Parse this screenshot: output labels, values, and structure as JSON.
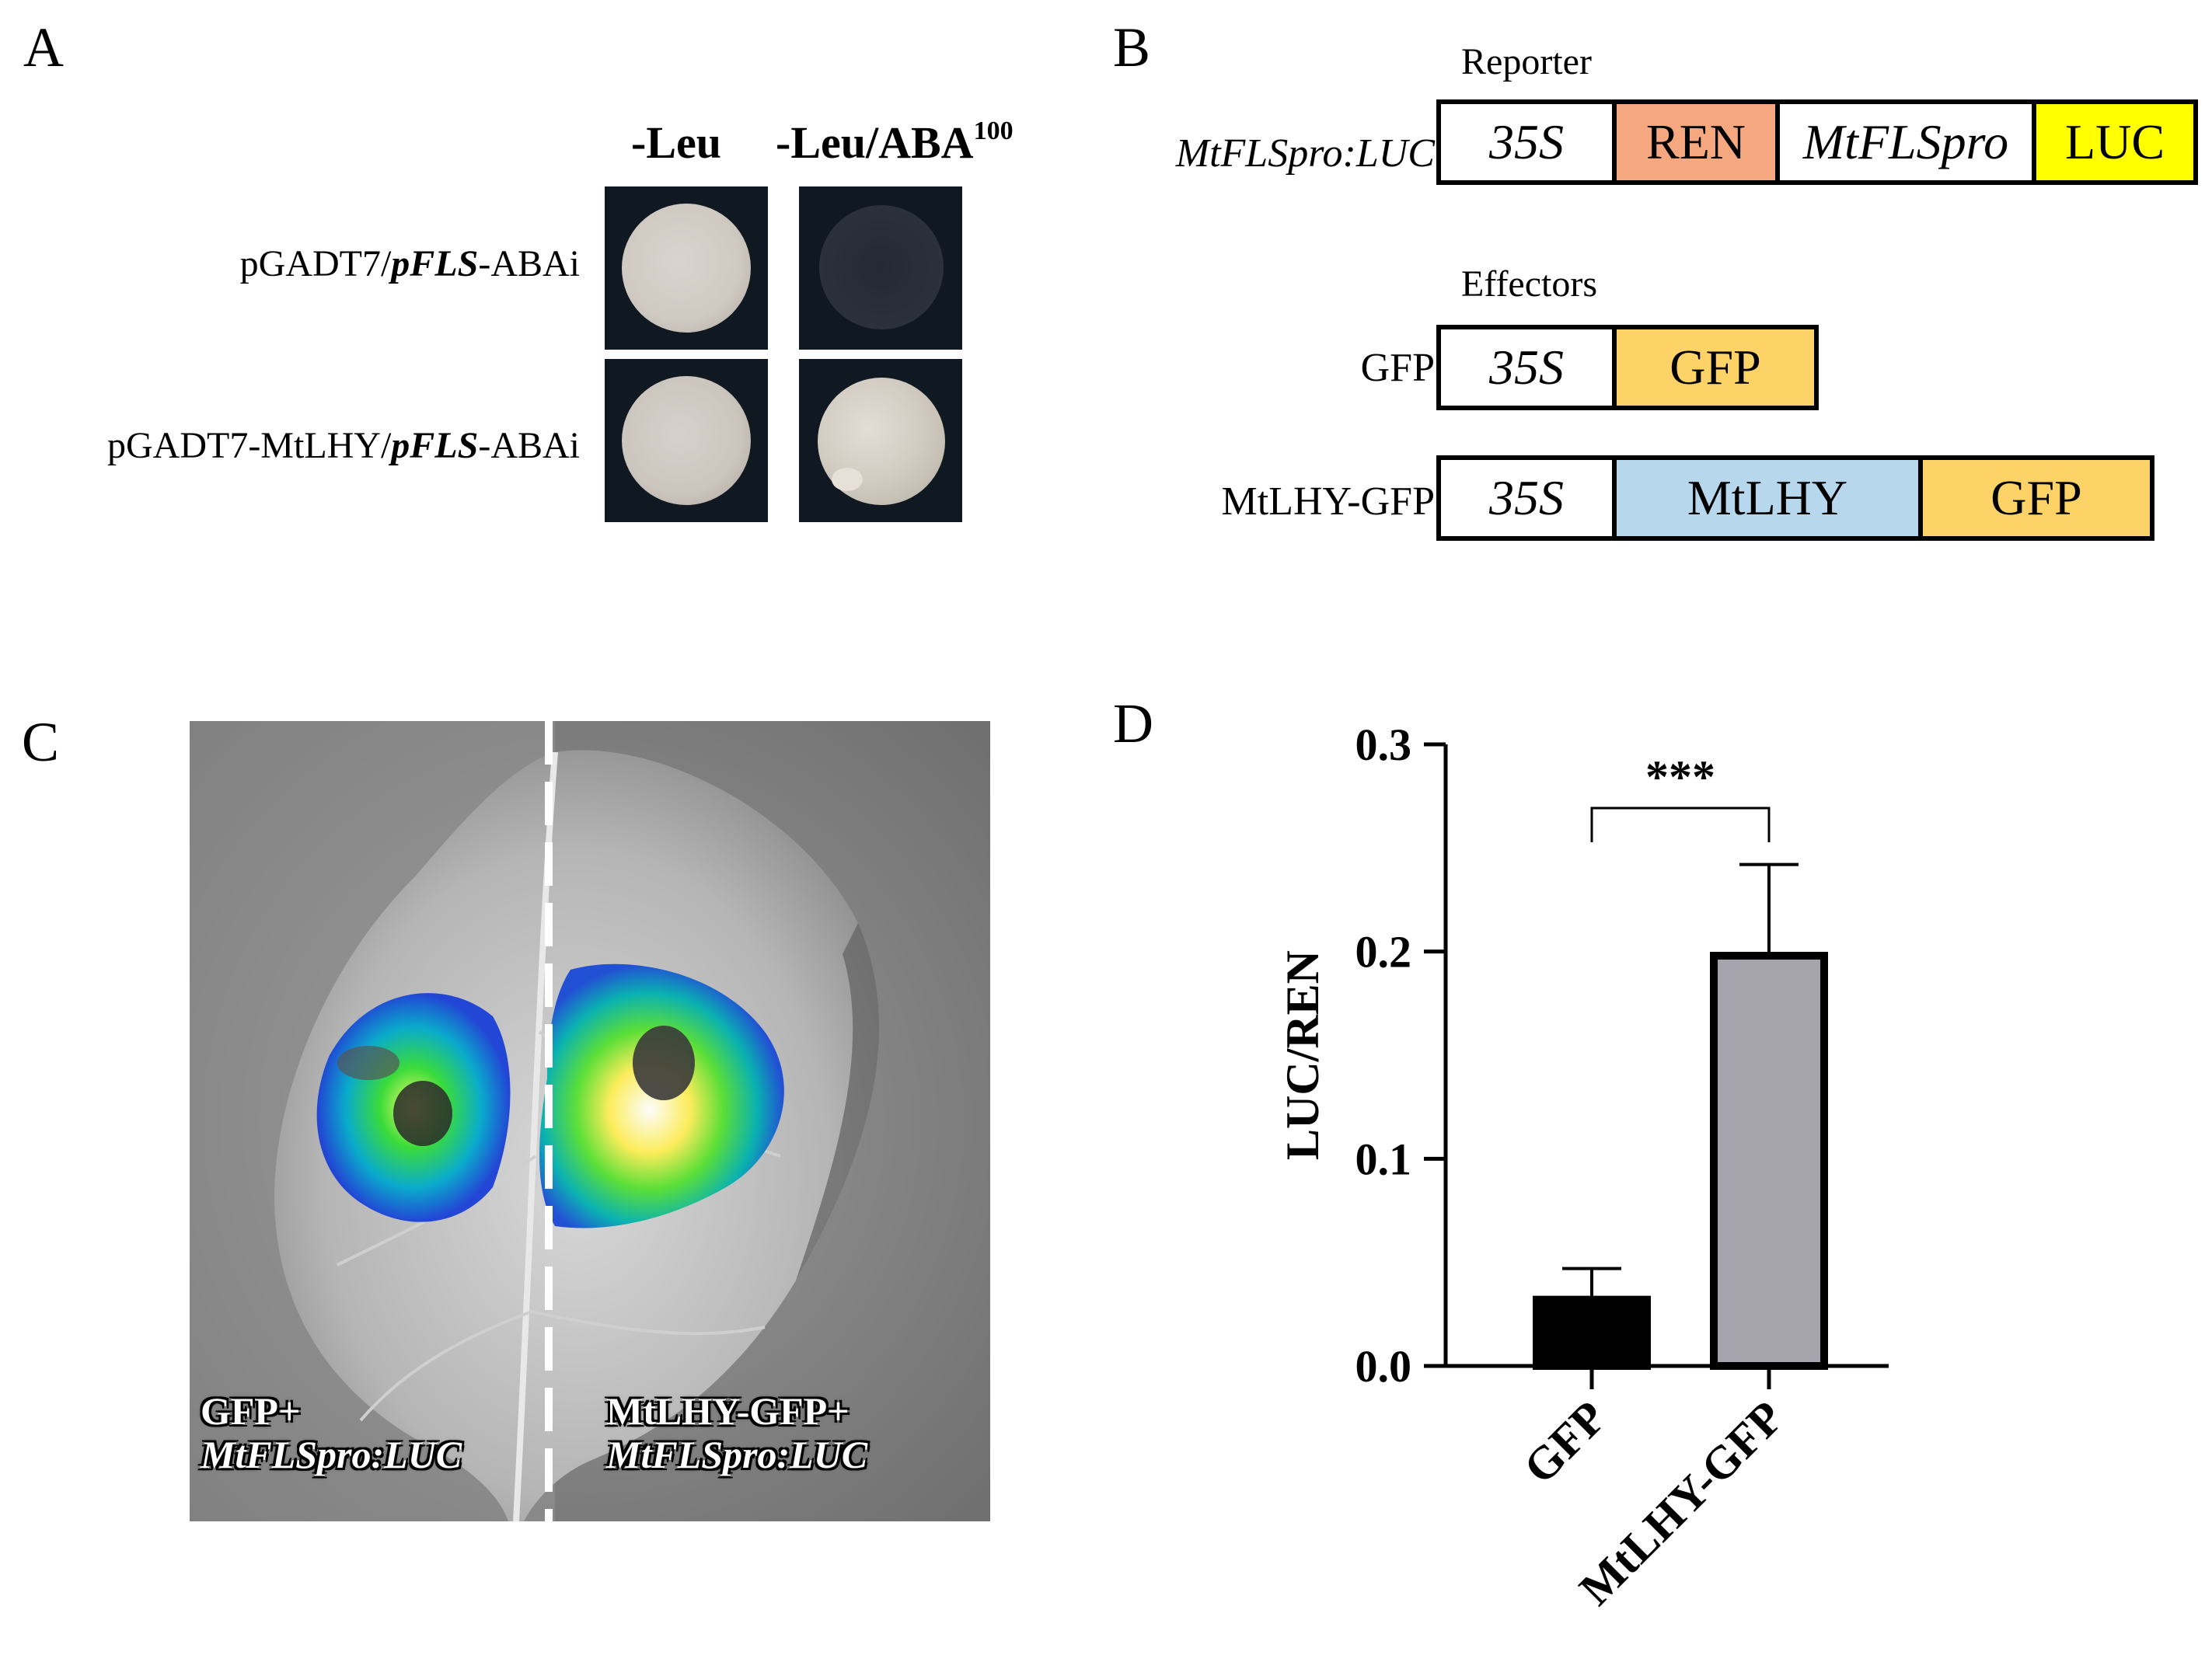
{
  "panels": {
    "a": {
      "letter": "A",
      "columns": [
        "-Leu",
        "-Leu/ABA"
      ],
      "column_superscript": "100",
      "rows": [
        {
          "prefix": "pGADT7/",
          "italic": "pFLS",
          "suffix": "-ABAi"
        },
        {
          "prefix": "pGADT7-MtLHY/",
          "italic": "pFLS",
          "suffix": "-ABAi"
        }
      ]
    },
    "b": {
      "letter": "B",
      "reporter_header": "Reporter",
      "effectors_header": "Effectors",
      "reporter": {
        "label": "MtFLSpro:LUC",
        "segments": [
          "35S",
          "REN",
          "MtFLSpro",
          "LUC"
        ]
      },
      "effectors": [
        {
          "label": "GFP",
          "segments": [
            "35S",
            "GFP"
          ]
        },
        {
          "label": "MtLHY-GFP",
          "segments": [
            "35S",
            "MtLHY",
            "GFP"
          ]
        }
      ],
      "colors": {
        "ren": "#f5a77f",
        "luc": "#ffff00",
        "gfp": "#fdd266",
        "mtlhy": "#b7d7ed"
      }
    },
    "c": {
      "letter": "C",
      "left_caption": [
        "GFP+",
        "MtFLSpro:LUC"
      ],
      "right_caption": [
        "MtLHY-GFP+",
        "MtFLSpro:LUC"
      ]
    },
    "d": {
      "letter": "D"
    }
  },
  "chart_data": {
    "type": "bar",
    "categories": [
      "GFP",
      "MtLHY-GFP"
    ],
    "values": [
      0.032,
      0.198
    ],
    "errors": [
      0.015,
      0.044
    ],
    "bar_colors": [
      "#000000",
      "#a5a3ab"
    ],
    "ylabel": "LUC/REN",
    "ylim": [
      0,
      0.3
    ],
    "yticks": [
      "0.0",
      "0.1",
      "0.2",
      "0.3"
    ],
    "significance": "***"
  }
}
